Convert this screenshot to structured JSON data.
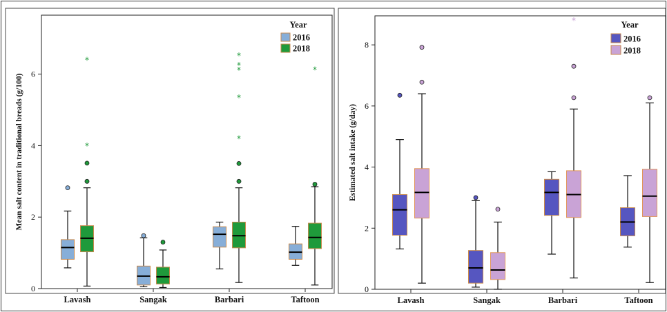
{
  "chart_data": [
    {
      "type": "boxplot",
      "ylabel": "Mean salt content in traditional breads (g/100)",
      "xlabel": "",
      "categories": [
        "Lavash",
        "Sangak",
        "Barbari",
        "Taftoon"
      ],
      "ylim": [
        0,
        7.65
      ],
      "yticks": [
        "0",
        "2",
        "4",
        "6"
      ],
      "ytick_values": [
        0,
        2,
        4,
        6
      ],
      "grid": false,
      "legend": {
        "title": "Year",
        "placement": "top-right"
      },
      "series": [
        {
          "name": "2016",
          "color": "#87aed8",
          "boxes": [
            {
              "min": 0.58,
              "q1": 0.82,
              "median": 1.15,
              "q3": 1.37,
              "max": 2.17,
              "outliers": [
                2.82
              ],
              "extremes": []
            },
            {
              "min": 0.05,
              "q1": 0.1,
              "median": 0.35,
              "q3": 0.63,
              "max": 1.42,
              "outliers": [
                1.48
              ],
              "extremes": []
            },
            {
              "min": 0.55,
              "q1": 1.16,
              "median": 1.52,
              "q3": 1.73,
              "max": 1.86,
              "outliers": [],
              "extremes": []
            },
            {
              "min": 0.65,
              "q1": 0.82,
              "median": 1.02,
              "q3": 1.25,
              "max": 1.74,
              "outliers": [],
              "extremes": []
            }
          ]
        },
        {
          "name": "2018",
          "color": "#1f9a3b",
          "boxes": [
            {
              "min": 0.07,
              "q1": 1.03,
              "median": 1.41,
              "q3": 1.76,
              "max": 2.82,
              "outliers": [
                3.0,
                3.51
              ],
              "extremes": [
                4.0,
                6.4
              ]
            },
            {
              "min": 0.03,
              "q1": 0.13,
              "median": 0.33,
              "q3": 0.6,
              "max": 1.08,
              "outliers": [
                1.3
              ],
              "extremes": []
            },
            {
              "min": 0.17,
              "q1": 1.14,
              "median": 1.48,
              "q3": 1.86,
              "max": 2.82,
              "outliers": [
                3.0,
                3.5
              ],
              "extremes": [
                4.2,
                5.35,
                6.12,
                6.25,
                6.52
              ]
            },
            {
              "min": 0.1,
              "q1": 1.12,
              "median": 1.43,
              "q3": 1.83,
              "max": 2.85,
              "outliers": [
                2.92
              ],
              "extremes": [
                6.13
              ]
            }
          ]
        }
      ]
    },
    {
      "type": "boxplot",
      "ylabel": "Estimated salt intake (g/day)",
      "xlabel": "",
      "categories": [
        "Lavash",
        "Sangak",
        "Barbari",
        "Taftoon"
      ],
      "ylim": [
        0,
        8.95
      ],
      "yticks": [
        "0",
        "2",
        "4",
        "6",
        "8"
      ],
      "ytick_values": [
        0,
        2,
        4,
        6,
        8
      ],
      "grid": false,
      "legend": {
        "title": "Year",
        "placement": "top-right"
      },
      "series": [
        {
          "name": "2016",
          "color": "#5656c0",
          "boxes": [
            {
              "min": 1.32,
              "q1": 1.77,
              "median": 2.6,
              "q3": 3.1,
              "max": 4.9,
              "outliers": [
                6.35
              ],
              "extremes": []
            },
            {
              "min": 0.07,
              "q1": 0.2,
              "median": 0.7,
              "q3": 1.27,
              "max": 2.9,
              "outliers": [
                3.0
              ],
              "extremes": []
            },
            {
              "min": 1.15,
              "q1": 2.42,
              "median": 3.17,
              "q3": 3.6,
              "max": 3.85,
              "outliers": [],
              "extremes": []
            },
            {
              "min": 1.38,
              "q1": 1.75,
              "median": 2.2,
              "q3": 2.67,
              "max": 3.72,
              "outliers": [],
              "extremes": []
            }
          ]
        },
        {
          "name": "2018",
          "color": "#c9a3d6",
          "boxes": [
            {
              "min": 0.2,
              "q1": 2.33,
              "median": 3.17,
              "q3": 3.95,
              "max": 6.4,
              "outliers": [
                6.78,
                7.92
              ],
              "extremes": []
            },
            {
              "min": 0.0,
              "q1": 0.32,
              "median": 0.63,
              "q3": 1.2,
              "max": 2.2,
              "outliers": [
                2.62
              ],
              "extremes": []
            },
            {
              "min": 0.37,
              "q1": 2.35,
              "median": 3.1,
              "q3": 3.88,
              "max": 5.9,
              "outliers": [
                6.27,
                7.3
              ],
              "extremes": [
                8.8
              ]
            },
            {
              "min": 0.22,
              "q1": 2.38,
              "median": 3.05,
              "q3": 3.93,
              "max": 6.1,
              "outliers": [
                6.27
              ],
              "extremes": []
            }
          ]
        }
      ]
    }
  ]
}
